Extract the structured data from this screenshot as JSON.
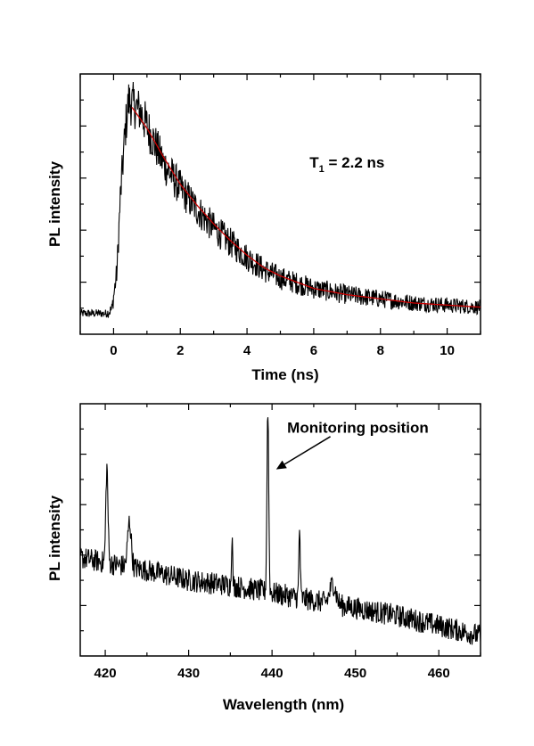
{
  "chart_data": [
    {
      "type": "line",
      "xlabel": "Time (ns)",
      "ylabel": "PL intensity",
      "xlim": [
        -1,
        11
      ],
      "ylim": [
        -0.1,
        1.15
      ],
      "xticks": [
        0,
        2,
        4,
        6,
        8,
        10
      ],
      "y_tick_labels_shown": false,
      "annotation": {
        "main": "T",
        "sub": "1",
        "rest": " = 2.2 ns",
        "x": 7.0,
        "y": 0.7
      },
      "series": [
        {
          "style": "noisy",
          "color": "#000000",
          "points": [
            [
              -1.0,
              0.0
            ],
            [
              -0.2,
              0.0
            ],
            [
              -0.05,
              0.02
            ],
            [
              0.1,
              0.2
            ],
            [
              0.2,
              0.55
            ],
            [
              0.35,
              0.88
            ],
            [
              0.45,
              1.02
            ],
            [
              0.6,
              1.0
            ],
            [
              0.8,
              0.97
            ],
            [
              1.0,
              0.9
            ],
            [
              1.5,
              0.72
            ],
            [
              2.0,
              0.6
            ],
            [
              2.5,
              0.5
            ],
            [
              3.0,
              0.41
            ],
            [
              3.5,
              0.34
            ],
            [
              4.0,
              0.27
            ],
            [
              4.5,
              0.21
            ],
            [
              5.0,
              0.17
            ],
            [
              6.0,
              0.12
            ],
            [
              7.0,
              0.09
            ],
            [
              8.0,
              0.07
            ],
            [
              9.0,
              0.05
            ],
            [
              10.0,
              0.04
            ],
            [
              11.0,
              0.03
            ]
          ]
        },
        {
          "style": "smooth",
          "color": "#cc0000",
          "points": [
            [
              0.55,
              0.99
            ],
            [
              1.0,
              0.89
            ],
            [
              1.5,
              0.75
            ],
            [
              2.0,
              0.62
            ],
            [
              2.5,
              0.52
            ],
            [
              3.0,
              0.43
            ],
            [
              3.5,
              0.35
            ],
            [
              4.0,
              0.28
            ],
            [
              4.5,
              0.22
            ],
            [
              5.0,
              0.18
            ],
            [
              5.5,
              0.15
            ],
            [
              6.0,
              0.12
            ],
            [
              7.0,
              0.09
            ],
            [
              8.0,
              0.07
            ],
            [
              9.0,
              0.05
            ],
            [
              10.0,
              0.04
            ],
            [
              11.0,
              0.03
            ]
          ]
        }
      ]
    },
    {
      "type": "line",
      "xlabel": "Wavelength (nm)",
      "ylabel": "PL intensity",
      "xlim": [
        417,
        465
      ],
      "ylim": [
        0,
        1.0
      ],
      "xticks": [
        420,
        430,
        440,
        450,
        460
      ],
      "y_tick_labels_shown": false,
      "annotation": {
        "text": "Monitoring position",
        "x": 450.3,
        "y": 0.885,
        "arrow_from": [
          447.0,
          0.87
        ],
        "arrow_to": [
          440.5,
          0.74
        ]
      },
      "series": [
        {
          "style": "noisy",
          "color": "#000000",
          "baseline": [
            [
              417,
              0.39
            ],
            [
              420,
              0.37
            ],
            [
              425,
              0.34
            ],
            [
              430,
              0.3
            ],
            [
              435,
              0.28
            ],
            [
              440,
              0.25
            ],
            [
              445,
              0.22
            ],
            [
              450,
              0.19
            ],
            [
              455,
              0.16
            ],
            [
              460,
              0.12
            ],
            [
              465,
              0.08
            ]
          ],
          "peaks": [
            {
              "x": 420.2,
              "height": 0.38,
              "width": 0.18
            },
            {
              "x": 422.9,
              "height": 0.18,
              "width": 0.3
            },
            {
              "x": 435.2,
              "height": 0.2,
              "width": 0.1
            },
            {
              "x": 439.5,
              "height": 0.73,
              "width": 0.15
            },
            {
              "x": 443.3,
              "height": 0.27,
              "width": 0.12
            },
            {
              "x": 447.3,
              "height": 0.08,
              "width": 0.5
            }
          ]
        }
      ]
    }
  ]
}
